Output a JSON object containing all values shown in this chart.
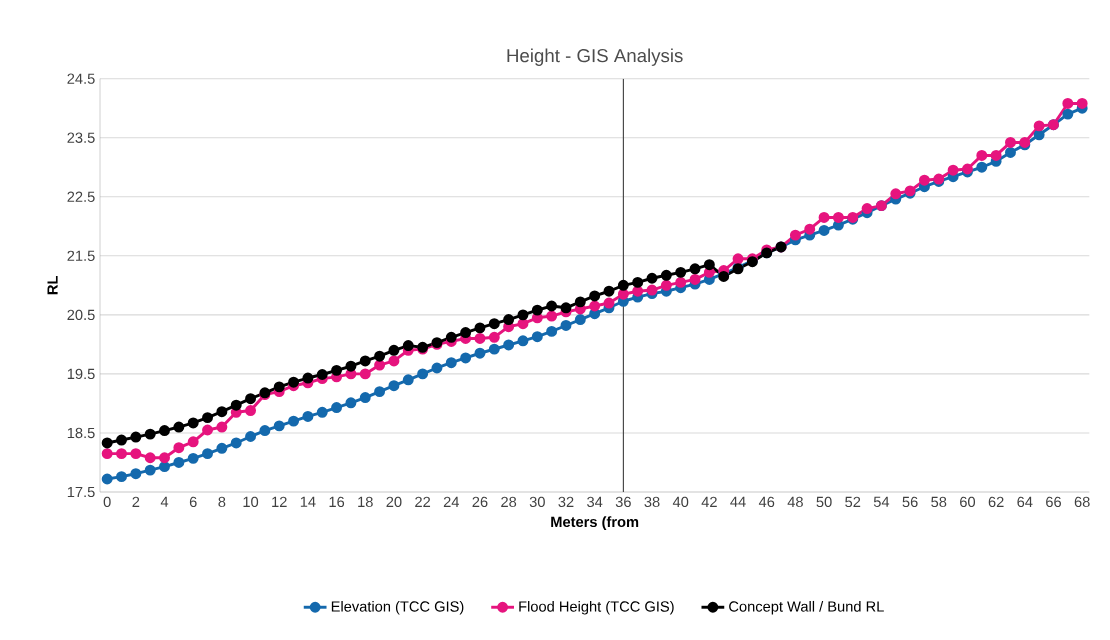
{
  "chart_data": {
    "type": "line",
    "title": "Height - GIS Analysis",
    "xlabel": "Meters (from",
    "ylabel": "RL",
    "categories": [
      "0",
      null,
      "2",
      null,
      "4",
      null,
      "6",
      null,
      "8",
      null,
      "10",
      null,
      "12",
      null,
      "14",
      null,
      "16",
      null,
      "18",
      null,
      "20",
      null,
      "22",
      null,
      "24",
      null,
      "26",
      null,
      "28",
      null,
      "30",
      null,
      "32",
      null,
      "34",
      null,
      "36",
      null,
      "38",
      null,
      "40",
      null,
      "42",
      null,
      "44",
      null,
      "46",
      null,
      "48",
      null,
      "50",
      null,
      "52",
      null,
      "54",
      null,
      "56",
      null,
      "58",
      null,
      "60",
      null,
      "62",
      null,
      "64",
      null,
      "66",
      null,
      "68"
    ],
    "series": [
      {
        "name": "Elevation (TCC GIS)",
        "color": "#1469ad",
        "values": [
          17.72,
          17.76,
          17.81,
          17.87,
          17.93,
          18.0,
          18.07,
          18.15,
          18.24,
          18.33,
          18.44,
          18.54,
          18.62,
          18.7,
          18.78,
          18.85,
          18.93,
          19.01,
          19.1,
          19.2,
          19.3,
          19.4,
          19.5,
          19.6,
          19.69,
          19.77,
          19.85,
          19.92,
          19.99,
          20.06,
          20.13,
          20.22,
          20.32,
          20.42,
          20.52,
          20.62,
          20.73,
          20.8,
          20.86,
          20.9,
          20.96,
          21.02,
          21.1,
          21.2,
          21.3,
          21.42,
          21.55,
          21.65,
          21.77,
          21.85,
          21.93,
          22.02,
          22.12,
          22.23,
          22.35,
          22.46,
          22.56,
          22.67,
          22.76,
          22.84,
          22.92,
          23.0,
          23.1,
          23.25,
          23.38,
          23.55,
          23.72,
          23.9,
          24.0
        ]
      },
      {
        "name": "Flood Height (TCC GIS)",
        "color": "#e6147e",
        "values": [
          18.15,
          18.15,
          18.15,
          18.08,
          18.08,
          18.25,
          18.35,
          18.55,
          18.6,
          18.85,
          18.88,
          19.15,
          19.2,
          19.3,
          19.35,
          19.42,
          19.45,
          19.5,
          19.5,
          19.65,
          19.72,
          19.9,
          19.92,
          20.0,
          20.05,
          20.1,
          20.1,
          20.12,
          20.3,
          20.35,
          20.45,
          20.48,
          20.55,
          20.6,
          20.65,
          20.7,
          20.85,
          20.9,
          20.92,
          21.0,
          21.05,
          21.1,
          21.22,
          21.25,
          21.45,
          21.45,
          21.6,
          21.65,
          21.85,
          21.95,
          22.15,
          22.15,
          22.15,
          22.3,
          22.35,
          22.55,
          22.6,
          22.78,
          22.8,
          22.95,
          22.97,
          23.2,
          23.2,
          23.42,
          23.42,
          23.7,
          23.72,
          24.08,
          24.08
        ]
      },
      {
        "name": "Concept Wall / Bund RL",
        "color": "#000000",
        "values": [
          18.33,
          18.38,
          18.43,
          18.48,
          18.54,
          18.6,
          18.67,
          18.76,
          18.86,
          18.97,
          19.08,
          19.18,
          19.28,
          19.36,
          19.43,
          19.49,
          19.56,
          19.63,
          19.72,
          19.8,
          19.9,
          19.98,
          19.95,
          20.03,
          20.12,
          20.2,
          20.28,
          20.35,
          20.42,
          20.5,
          20.58,
          20.65,
          20.62,
          20.72,
          20.82,
          20.9,
          21.0,
          21.05,
          21.12,
          21.17,
          21.22,
          21.28,
          21.35,
          21.15,
          21.28,
          21.4,
          21.55,
          21.65,
          null,
          null,
          null,
          null,
          null,
          null,
          null,
          null,
          null,
          null,
          null,
          null,
          null,
          null,
          null,
          null,
          null,
          null,
          null,
          null,
          null
        ]
      }
    ],
    "ylim": [
      17.5,
      24.5
    ],
    "yticks": [
      17.5,
      18.5,
      19.5,
      20.5,
      21.5,
      22.5,
      23.5,
      24.5
    ],
    "ref_lines": [
      {
        "axis": "x",
        "value": "36",
        "color": "#404040"
      }
    ],
    "grid": "y",
    "legend": "bottom",
    "marker": "circle",
    "line_style": "solid"
  }
}
